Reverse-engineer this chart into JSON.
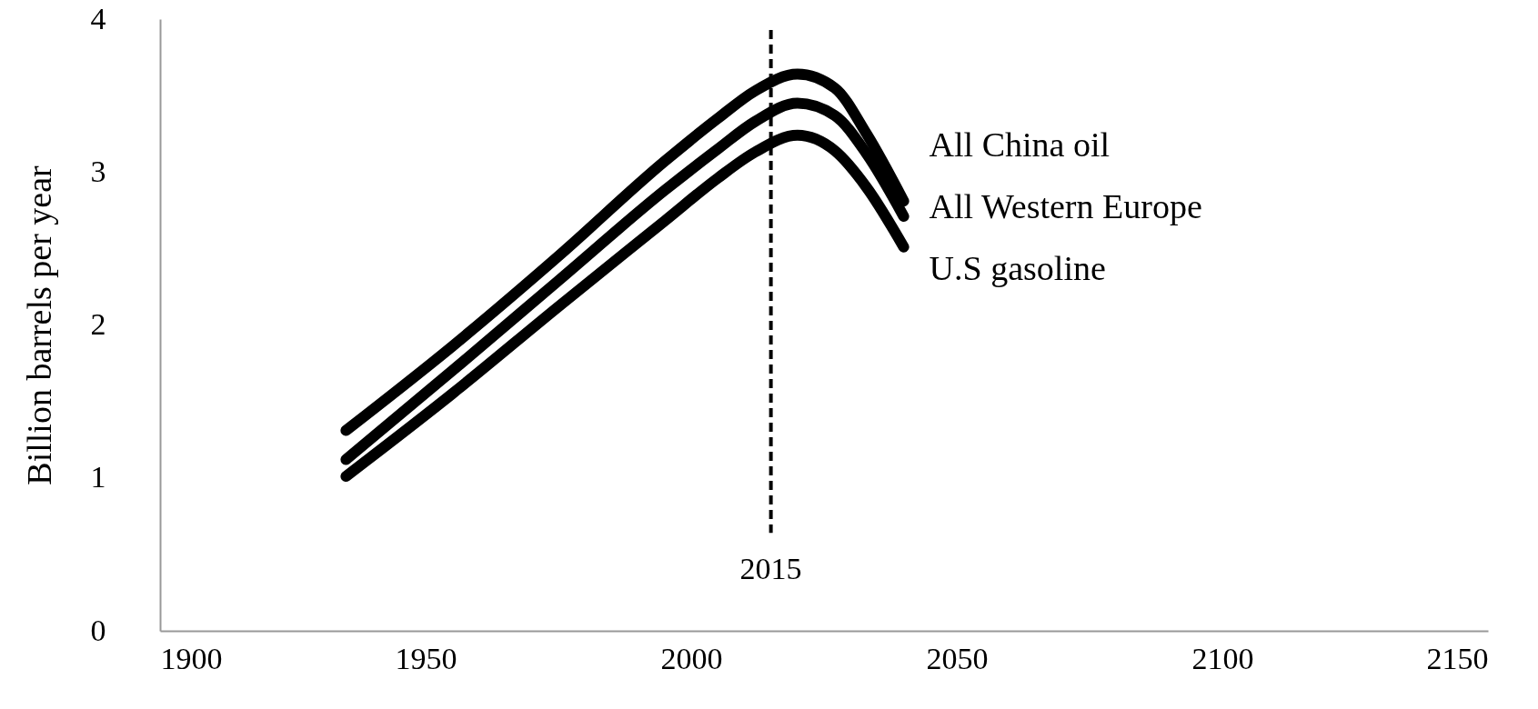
{
  "chart_data": {
    "type": "line",
    "ylabel": "Billion barrels per year",
    "xlim": [
      1900,
      2150
    ],
    "xticks": [
      1900,
      1950,
      2000,
      2050,
      2100,
      2150
    ],
    "ylim": [
      0,
      4
    ],
    "yticks": [
      0,
      1,
      2,
      3,
      4
    ],
    "grid": false,
    "legend": false,
    "marker": "none",
    "line_style": "solid",
    "x": [
      1935,
      1955,
      1975,
      1995,
      2005,
      2012,
      2020,
      2027,
      2033,
      2040
    ],
    "series": [
      {
        "name": "All China oil",
        "color": "#000000",
        "values": [
          1.31,
          1.86,
          2.45,
          3.07,
          3.35,
          3.53,
          3.64,
          3.55,
          3.25,
          2.81
        ]
      },
      {
        "name": "All Western Europe",
        "color": "#000000",
        "values": [
          1.12,
          1.7,
          2.29,
          2.88,
          3.15,
          3.33,
          3.45,
          3.37,
          3.12,
          2.71
        ]
      },
      {
        "name": "U.S gasoline",
        "color": "#000000",
        "values": [
          1.01,
          1.55,
          2.12,
          2.68,
          2.96,
          3.13,
          3.24,
          3.14,
          2.9,
          2.51
        ]
      }
    ],
    "ref_lines": [
      {
        "axis": "x",
        "value": 2015,
        "label": "2015",
        "color": "#000000",
        "line_style": "dashed"
      }
    ]
  }
}
